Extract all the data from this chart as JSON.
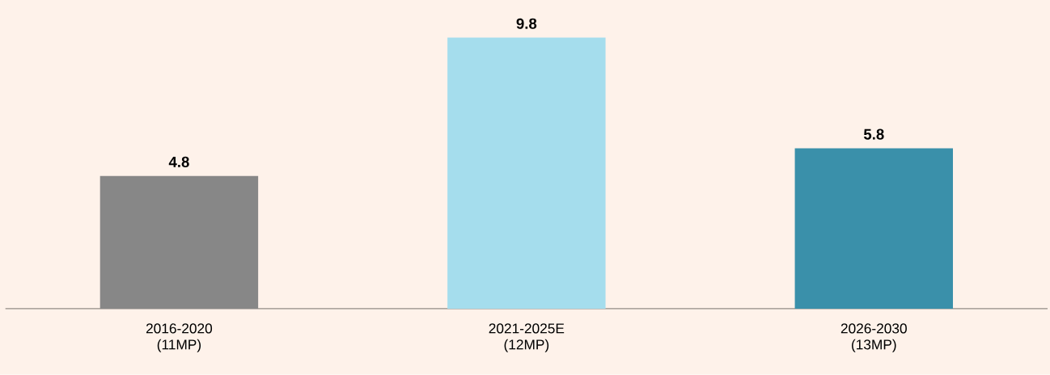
{
  "chart_data": {
    "type": "bar",
    "categories": [
      "2016-2020 (11MP)",
      "2021-2025E (12MP)",
      "2026-2030 (13MP)"
    ],
    "values": [
      4.8,
      9.8,
      5.8
    ],
    "colors": [
      "#878787",
      "#a5dded",
      "#3a90aa"
    ],
    "data_labels": true
  }
}
